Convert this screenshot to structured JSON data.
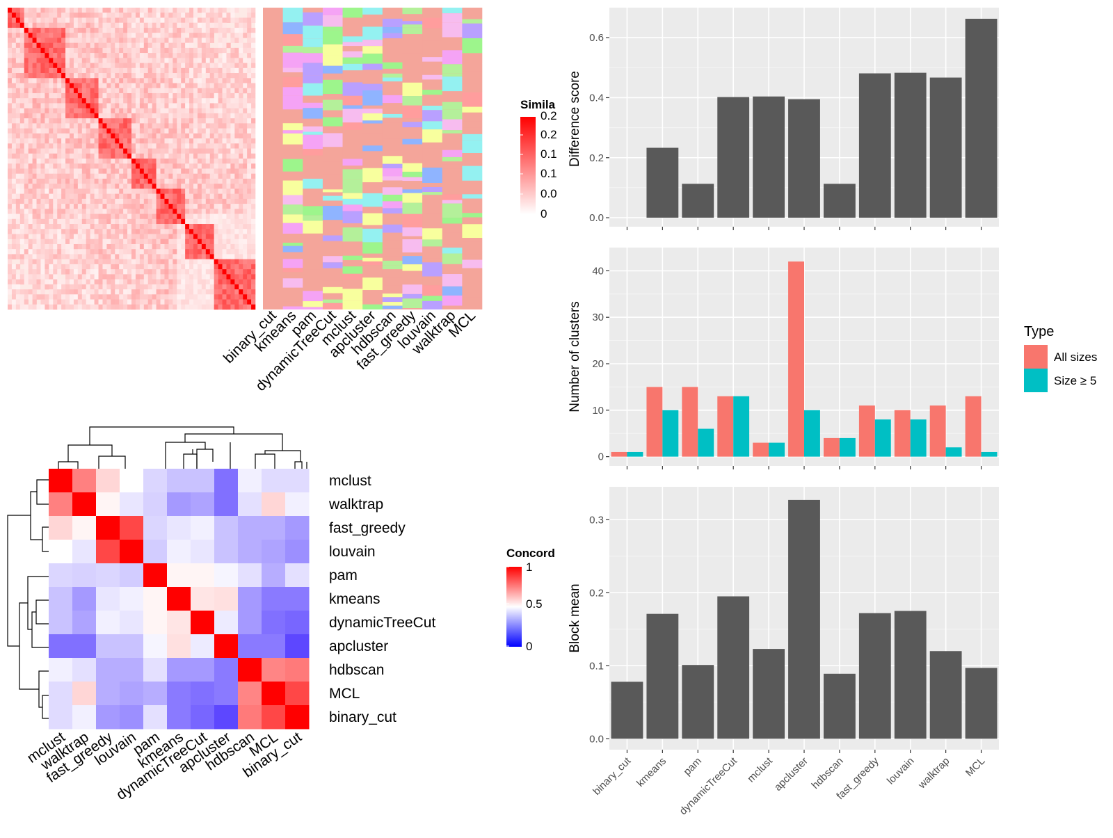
{
  "similarity_heatmap": {
    "legend_title": "Simila",
    "legend_ticks": [
      "0.2",
      "0.2",
      "0.1",
      "0.1",
      "0.0",
      "0"
    ],
    "methods": [
      "binary_cut",
      "kmeans",
      "pam",
      "dynamicTreeCut",
      "mclust",
      "apcluster",
      "hdbscan",
      "fast_greedy",
      "louvain",
      "walktrap",
      "MCL"
    ]
  },
  "concordance_heatmap": {
    "legend_title": "Concord",
    "legend_ticks": [
      "1",
      "0.5",
      "0"
    ],
    "row_labels": [
      "mclust",
      "walktrap",
      "fast_greedy",
      "louvain",
      "pam",
      "kmeans",
      "dynamicTreeCut",
      "apcluster",
      "hdbscan",
      "MCL",
      "binary_cut"
    ],
    "col_labels": [
      "mclust",
      "walktrap",
      "fast_greedy",
      "louvain",
      "pam",
      "kmeans",
      "dynamicTreeCut",
      "apcluster",
      "hdbscan",
      "MCL",
      "binary_cut"
    ]
  },
  "chart_data": [
    {
      "type": "bar",
      "panel": "difference-score",
      "ylabel": "Difference score",
      "categories": [
        "binary_cut",
        "kmeans",
        "pam",
        "dynamicTreeCut",
        "mclust",
        "apcluster",
        "hdbscan",
        "fast_greedy",
        "louvain",
        "walktrap",
        "MCL"
      ],
      "values": [
        0.0,
        0.233,
        0.113,
        0.402,
        0.404,
        0.395,
        0.113,
        0.481,
        0.483,
        0.467,
        0.663
      ],
      "ylim": [
        -0.03,
        0.7
      ],
      "yticks": [
        "0.0",
        "0.2",
        "0.4",
        "0.6"
      ],
      "grid": true
    },
    {
      "type": "bar",
      "panel": "number-of-clusters",
      "ylabel": "Number of clusters",
      "categories": [
        "binary_cut",
        "kmeans",
        "pam",
        "dynamicTreeCut",
        "mclust",
        "apcluster",
        "hdbscan",
        "fast_greedy",
        "louvain",
        "walktrap",
        "MCL"
      ],
      "series": [
        {
          "name": "All sizes",
          "color": "#F8766D",
          "values": [
            1,
            15,
            15,
            13,
            3,
            42,
            4,
            11,
            10,
            11,
            13
          ]
        },
        {
          "name": "Size ≥ 5",
          "color": "#00BFC4",
          "values": [
            1,
            10,
            6,
            13,
            3,
            10,
            4,
            8,
            8,
            2,
            1
          ]
        }
      ],
      "legend_title": "Type",
      "legend_position": "right",
      "ylim": [
        -2,
        45
      ],
      "yticks": [
        "0",
        "10",
        "20",
        "30",
        "40"
      ],
      "grid": true
    },
    {
      "type": "bar",
      "panel": "block-mean",
      "ylabel": "Block mean",
      "categories": [
        "binary_cut",
        "kmeans",
        "pam",
        "dynamicTreeCut",
        "mclust",
        "apcluster",
        "hdbscan",
        "fast_greedy",
        "louvain",
        "walktrap",
        "MCL"
      ],
      "values": [
        0.078,
        0.171,
        0.101,
        0.195,
        0.123,
        0.327,
        0.089,
        0.172,
        0.175,
        0.12,
        0.097
      ],
      "ylim": [
        -0.015,
        0.345
      ],
      "yticks": [
        "0.0",
        "0.1",
        "0.2",
        "0.3"
      ],
      "grid": true
    },
    {
      "type": "heatmap",
      "panel": "concordance",
      "title": "",
      "rows": [
        "mclust",
        "walktrap",
        "fast_greedy",
        "louvain",
        "pam",
        "kmeans",
        "dynamicTreeCut",
        "apcluster",
        "hdbscan",
        "MCL",
        "binary_cut"
      ],
      "cols": [
        "mclust",
        "walktrap",
        "fast_greedy",
        "louvain",
        "pam",
        "kmeans",
        "dynamicTreeCut",
        "apcluster",
        "hdbscan",
        "MCL",
        "binary_cut"
      ],
      "values": [
        [
          1.0,
          0.75,
          0.58,
          0.5,
          0.42,
          0.38,
          0.38,
          0.22,
          0.47,
          0.43,
          0.43
        ],
        [
          0.75,
          1.0,
          0.52,
          0.45,
          0.41,
          0.3,
          0.32,
          0.22,
          0.44,
          0.58,
          0.47
        ],
        [
          0.58,
          0.52,
          1.0,
          0.86,
          0.42,
          0.45,
          0.47,
          0.38,
          0.34,
          0.34,
          0.3
        ],
        [
          0.5,
          0.45,
          0.86,
          1.0,
          0.4,
          0.47,
          0.45,
          0.38,
          0.34,
          0.32,
          0.28
        ],
        [
          0.42,
          0.41,
          0.42,
          0.4,
          1.0,
          0.52,
          0.52,
          0.48,
          0.44,
          0.34,
          0.44
        ],
        [
          0.38,
          0.3,
          0.45,
          0.47,
          0.52,
          1.0,
          0.55,
          0.56,
          0.3,
          0.24,
          0.24
        ],
        [
          0.38,
          0.32,
          0.47,
          0.45,
          0.52,
          0.55,
          1.0,
          0.46,
          0.3,
          0.22,
          0.2
        ],
        [
          0.22,
          0.22,
          0.38,
          0.38,
          0.48,
          0.56,
          0.46,
          1.0,
          0.24,
          0.24,
          0.14
        ],
        [
          0.47,
          0.44,
          0.34,
          0.34,
          0.44,
          0.3,
          0.3,
          0.24,
          1.0,
          0.74,
          0.76
        ],
        [
          0.43,
          0.58,
          0.34,
          0.32,
          0.34,
          0.24,
          0.22,
          0.24,
          0.74,
          1.0,
          0.86
        ],
        [
          0.43,
          0.47,
          0.3,
          0.28,
          0.44,
          0.24,
          0.2,
          0.14,
          0.76,
          0.86,
          1.0
        ]
      ]
    }
  ]
}
